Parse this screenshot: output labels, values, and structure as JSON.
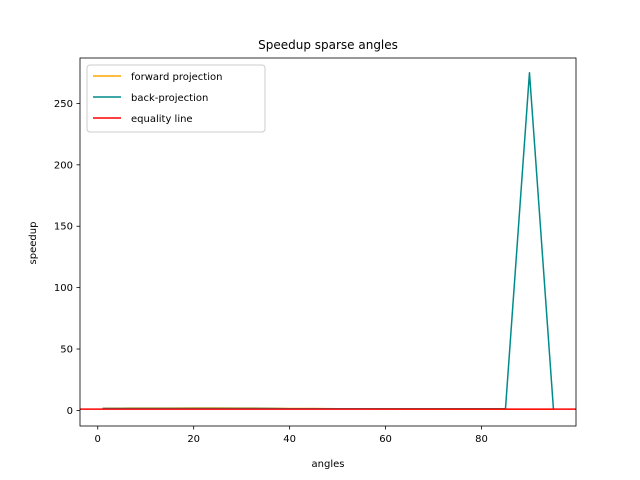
{
  "chart_data": {
    "type": "line",
    "title": "Speedup sparse angles",
    "xlabel": "angles",
    "ylabel": "speedup",
    "xlim": [
      -3.7,
      99.7
    ],
    "ylim": [
      -12.7,
      287.0
    ],
    "xticks": [
      0,
      20,
      40,
      60,
      80
    ],
    "yticks": [
      0,
      50,
      100,
      150,
      200,
      250
    ],
    "grid": false,
    "legend_position": "upper left",
    "series": [
      {
        "name": "forward projection",
        "color": "#ffa500",
        "x": [
          1,
          5,
          10,
          15,
          20,
          25,
          30,
          35,
          40,
          45,
          50,
          55,
          60,
          65,
          70,
          75,
          80,
          85,
          90,
          95
        ],
        "y": [
          1.8,
          1.8,
          1.9,
          1.9,
          2.0,
          2.0,
          1.9,
          1.8,
          1.6,
          1.5,
          1.4,
          1.3,
          1.2,
          1.1,
          1.1,
          1.0,
          1.0,
          1.0,
          0.9,
          0.9
        ]
      },
      {
        "name": "back-projection",
        "color": "#008b8b",
        "x": [
          1,
          5,
          10,
          15,
          20,
          25,
          30,
          35,
          40,
          45,
          50,
          55,
          60,
          65,
          70,
          75,
          80,
          85,
          90,
          95
        ],
        "y": [
          1.5,
          1.5,
          1.5,
          1.5,
          1.5,
          1.5,
          1.5,
          1.5,
          1.4,
          1.4,
          1.4,
          1.4,
          1.4,
          1.4,
          1.4,
          1.4,
          1.4,
          1.4,
          275.0,
          1.0
        ]
      },
      {
        "name": "equality line",
        "color": "#ff0000",
        "x": [
          -3.7,
          99.7
        ],
        "y": [
          1,
          1
        ]
      }
    ]
  }
}
